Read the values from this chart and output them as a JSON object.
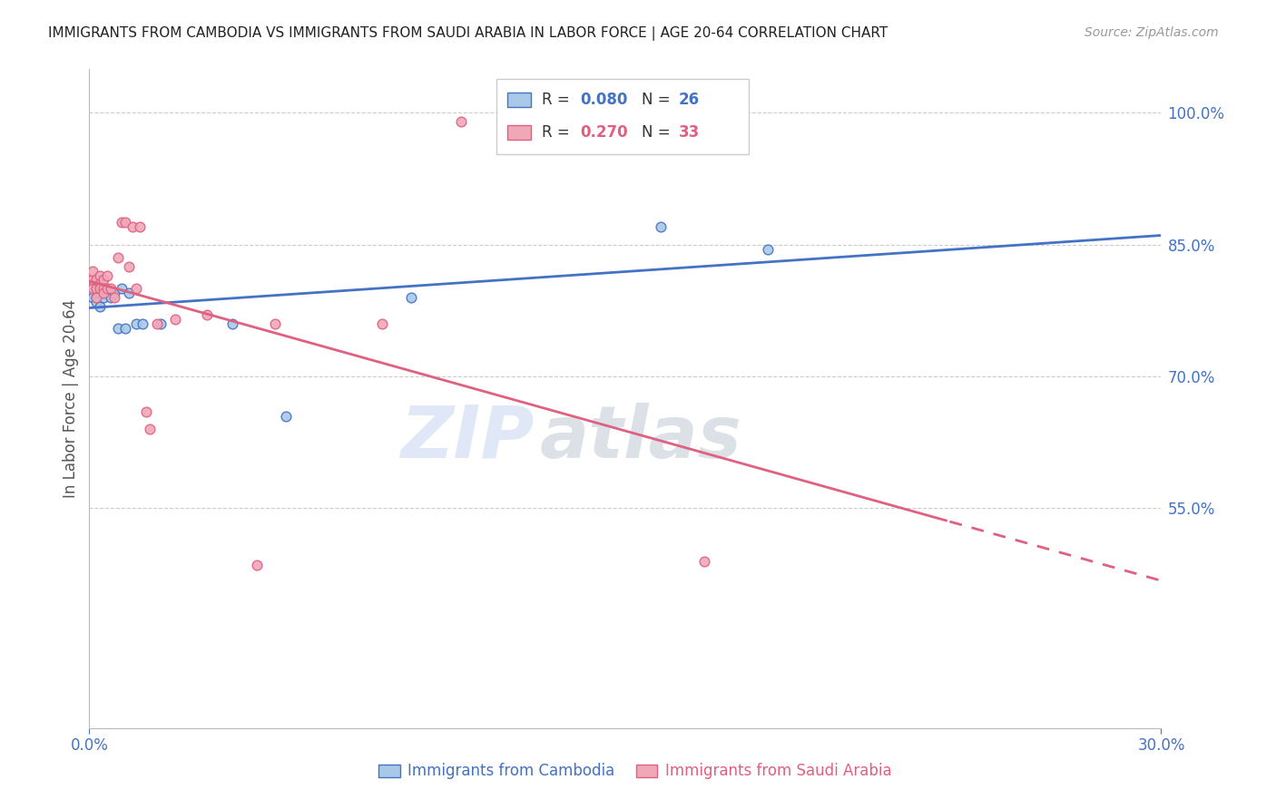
{
  "title": "IMMIGRANTS FROM CAMBODIA VS IMMIGRANTS FROM SAUDI ARABIA IN LABOR FORCE | AGE 20-64 CORRELATION CHART",
  "source": "Source: ZipAtlas.com",
  "ylabel": "In Labor Force | Age 20-64",
  "xlabel_cambodia": "Immigrants from Cambodia",
  "xlabel_saudi": "Immigrants from Saudi Arabia",
  "watermark_zip": "ZIP",
  "watermark_atlas": "atlas",
  "xmin": 0.0,
  "xmax": 0.3,
  "ymin": 0.3,
  "ymax": 1.05,
  "ytick_vals": [
    0.55,
    0.7,
    0.85,
    1.0
  ],
  "ytick_labels": [
    "55.0%",
    "70.0%",
    "85.0%",
    "100.0%"
  ],
  "cambodia_R": "0.080",
  "cambodia_N": "26",
  "saudi_R": "0.270",
  "saudi_N": "33",
  "cambodia_color": "#A8C8E8",
  "saudi_color": "#F0A8B8",
  "cambodia_line_color": "#4472C4",
  "saudi_line_color": "#E06080",
  "grid_color": "#CCCCCC",
  "axis_color": "#4472C4",
  "cambodia_x": [
    0.001,
    0.001,
    0.001,
    0.002,
    0.002,
    0.002,
    0.003,
    0.003,
    0.003,
    0.004,
    0.004,
    0.005,
    0.006,
    0.007,
    0.008,
    0.009,
    0.01,
    0.011,
    0.013,
    0.015,
    0.02,
    0.04,
    0.055,
    0.09,
    0.16,
    0.19
  ],
  "cambodia_y": [
    0.8,
    0.795,
    0.79,
    0.8,
    0.79,
    0.785,
    0.8,
    0.795,
    0.78,
    0.8,
    0.79,
    0.795,
    0.79,
    0.795,
    0.755,
    0.8,
    0.755,
    0.795,
    0.76,
    0.76,
    0.76,
    0.76,
    0.655,
    0.79,
    0.87,
    0.845
  ],
  "saudi_x": [
    0.001,
    0.001,
    0.001,
    0.002,
    0.002,
    0.002,
    0.003,
    0.003,
    0.003,
    0.004,
    0.004,
    0.004,
    0.005,
    0.005,
    0.006,
    0.007,
    0.008,
    0.009,
    0.01,
    0.011,
    0.012,
    0.013,
    0.014,
    0.016,
    0.017,
    0.019,
    0.024,
    0.033,
    0.047,
    0.052,
    0.082,
    0.104,
    0.172
  ],
  "saudi_y": [
    0.8,
    0.81,
    0.82,
    0.81,
    0.8,
    0.79,
    0.815,
    0.805,
    0.8,
    0.81,
    0.8,
    0.795,
    0.815,
    0.8,
    0.8,
    0.79,
    0.835,
    0.875,
    0.875,
    0.825,
    0.87,
    0.8,
    0.87,
    0.66,
    0.64,
    0.76,
    0.765,
    0.77,
    0.485,
    0.76,
    0.76,
    0.99,
    0.49
  ]
}
